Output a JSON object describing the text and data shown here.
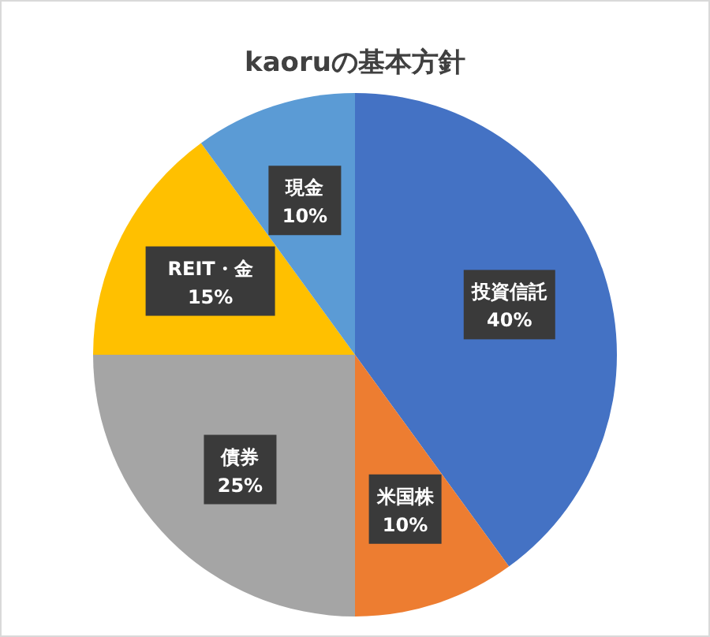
{
  "chart_data": {
    "type": "pie",
    "title": "kaoruの基本方針",
    "categories": [
      "投資信託",
      "米国株",
      "債券",
      "REIT・金",
      "現金"
    ],
    "values": [
      40,
      10,
      25,
      15,
      10
    ],
    "value_labels": [
      "40%",
      "10%",
      "25%",
      "15%",
      "10%"
    ],
    "colors": [
      "#4472c4",
      "#ed7d31",
      "#a5a5a5",
      "#ffc000",
      "#5b9bd5"
    ]
  }
}
